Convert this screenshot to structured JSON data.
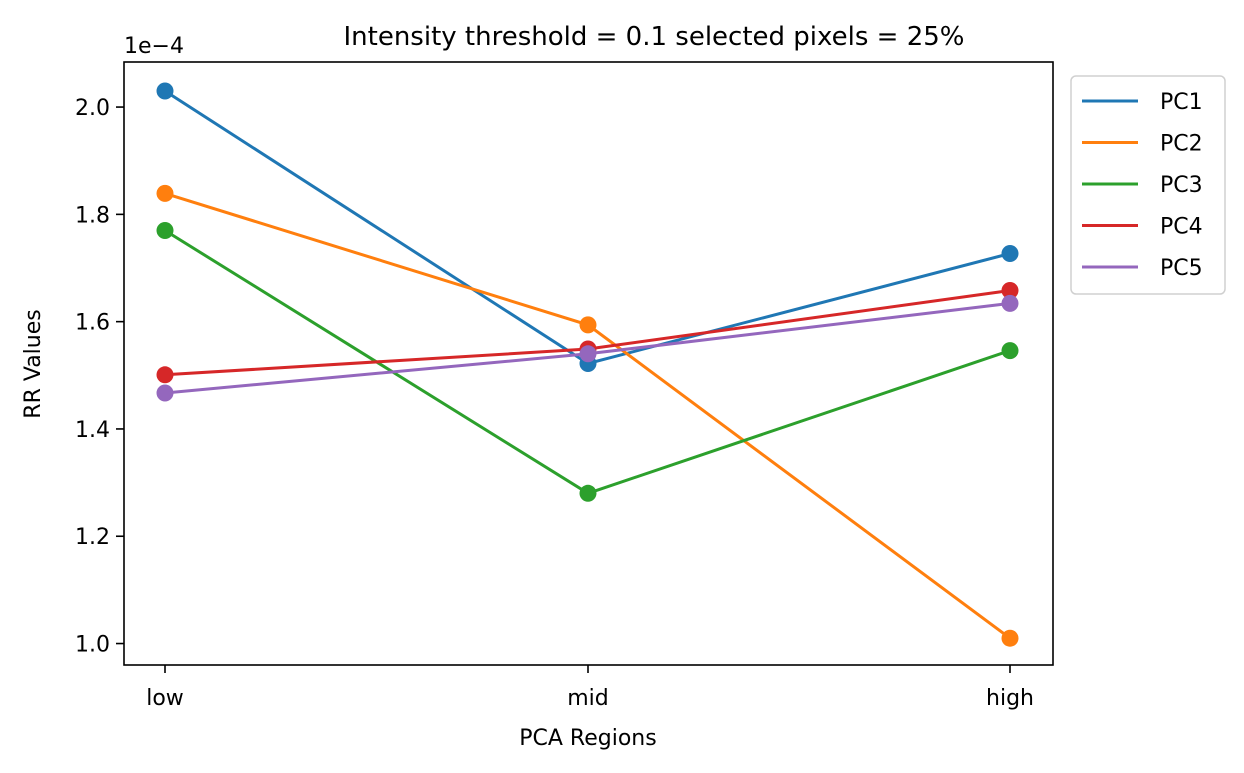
{
  "chart_data": {
    "type": "line",
    "title": "Intensity threshold = 0.1 selected pixels = 25%",
    "xlabel": "PCA Regions",
    "ylabel": "RR Values",
    "y_scale_label": "1e−4",
    "categories": [
      "low",
      "mid",
      "high"
    ],
    "y_ticks": [
      "1.0",
      "1.2",
      "1.4",
      "1.6",
      "1.8",
      "2.0"
    ],
    "y_tick_values": [
      1.0,
      1.2,
      1.4,
      1.6,
      1.8,
      2.0
    ],
    "ylim": [
      0.96,
      2.084
    ],
    "grid": false,
    "legend_position": "outside-right-top",
    "series": [
      {
        "name": "PC1",
        "color": "#1f77b4",
        "values": [
          2.03,
          1.522,
          1.727
        ]
      },
      {
        "name": "PC2",
        "color": "#ff7f0e",
        "values": [
          1.839,
          1.594,
          1.01
        ]
      },
      {
        "name": "PC3",
        "color": "#2ca02c",
        "values": [
          1.77,
          1.28,
          1.546
        ]
      },
      {
        "name": "PC4",
        "color": "#d62728",
        "values": [
          1.501,
          1.549,
          1.658
        ]
      },
      {
        "name": "PC5",
        "color": "#9467bd",
        "values": [
          1.467,
          1.54,
          1.634
        ]
      }
    ]
  }
}
